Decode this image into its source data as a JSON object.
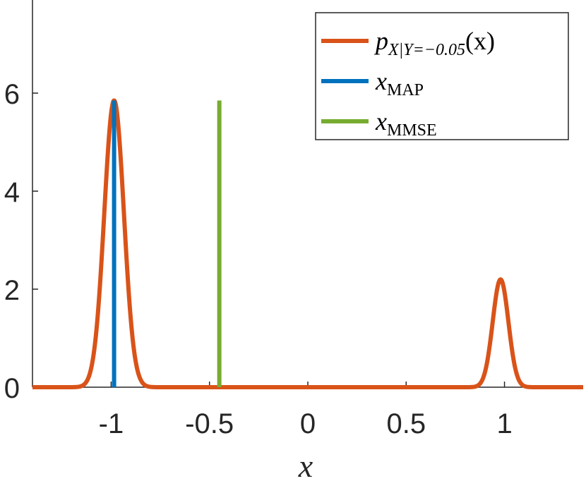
{
  "chart_data": {
    "type": "line",
    "xlabel": "x",
    "ylabel": "",
    "xlim": [
      -1.4,
      1.4
    ],
    "ylim": [
      0,
      7.9
    ],
    "xticks": [
      -1,
      -0.5,
      0,
      0.5,
      1
    ],
    "xtick_labels": [
      "-1",
      "-0.5",
      "0",
      "0.5",
      "1"
    ],
    "yticks": [
      0,
      2,
      4,
      6
    ],
    "ytick_labels": [
      "0",
      "2",
      "4",
      "6"
    ],
    "grid": false,
    "legend_position": "top-right",
    "colors": {
      "posterior": "#D95319",
      "map": "#0072BD",
      "mmse": "#77AC30",
      "axis": "#262626"
    },
    "series": [
      {
        "name": "posterior",
        "kind": "curve",
        "legend_main": "p",
        "legend_sub": "X|Y=−0.05",
        "legend_tail": "(x)",
        "components": [
          {
            "mean": -0.985,
            "sd": 0.05,
            "peak": 5.85
          },
          {
            "mean": 0.98,
            "sd": 0.04,
            "peak": 2.2
          }
        ]
      },
      {
        "name": "map",
        "kind": "vline",
        "legend_main": "x",
        "legend_sub": "MAP",
        "x": -0.985,
        "y": [
          0,
          5.85
        ]
      },
      {
        "name": "mmse",
        "kind": "vline",
        "legend_main": "x",
        "legend_sub": "MMSE",
        "x": -0.45,
        "y": [
          0,
          5.85
        ]
      }
    ]
  }
}
